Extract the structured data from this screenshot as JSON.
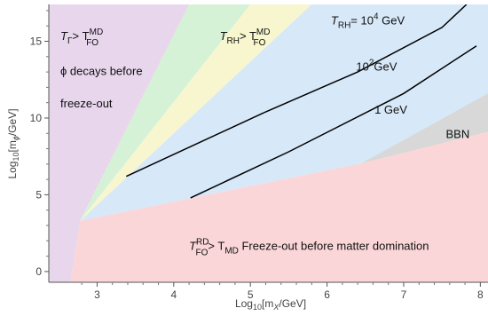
{
  "chart_data": {
    "type": "area",
    "xlabel_main": "Log",
    "xlabel_sub": "10",
    "xlabel_rest": "[m",
    "xlabel_var_sub": "X",
    "xlabel_tail": "/GeV]",
    "ylabel_main": "Log",
    "ylabel_sub": "10",
    "ylabel_rest": "[m",
    "ylabel_var_sub": "ϕ",
    "ylabel_tail": "/GeV]",
    "xlim": [
      2.37,
      8.1
    ],
    "ylim": [
      -0.7,
      17.4
    ],
    "x_ticks": [
      3,
      4,
      5,
      6,
      7,
      8
    ],
    "x_tick_labels": [
      "3",
      "4",
      "5",
      "6",
      "7",
      "8"
    ],
    "y_ticks": [
      0,
      5,
      10,
      15
    ],
    "y_tick_labels": [
      "0",
      "5",
      "10",
      "15"
    ],
    "grid": false,
    "colors": {
      "purple": "#e7d6ec",
      "green": "#d6f2d6",
      "yellow": "#f7f6cf",
      "blue": "#d7e8f8",
      "pink": "#fbd6d8",
      "gray": "#d8d8d8",
      "curve": "#000000"
    },
    "regions": [
      {
        "id": "purple",
        "points": [
          [
            2.37,
            17.4
          ],
          [
            4.2,
            17.4
          ],
          [
            2.78,
            3.3
          ],
          [
            2.65,
            -0.7
          ],
          [
            2.37,
            -0.7
          ]
        ]
      },
      {
        "id": "green",
        "points": [
          [
            4.2,
            17.4
          ],
          [
            5.0,
            17.4
          ],
          [
            2.78,
            3.3
          ]
        ]
      },
      {
        "id": "yellow",
        "points": [
          [
            5.0,
            17.4
          ],
          [
            5.8,
            17.4
          ],
          [
            2.78,
            3.3
          ]
        ]
      },
      {
        "id": "blue",
        "points": [
          [
            5.8,
            17.4
          ],
          [
            8.1,
            17.4
          ],
          [
            8.1,
            9.1
          ],
          [
            6.45,
            7.05
          ],
          [
            2.78,
            3.3
          ]
        ]
      },
      {
        "id": "gray",
        "points": [
          [
            6.45,
            7.05
          ],
          [
            8.1,
            11.6
          ],
          [
            8.1,
            9.1
          ]
        ]
      },
      {
        "id": "pink",
        "points": [
          [
            2.65,
            -0.7
          ],
          [
            2.78,
            3.3
          ],
          [
            6.45,
            7.05
          ],
          [
            8.1,
            9.1
          ],
          [
            8.1,
            -0.7
          ]
        ]
      }
    ],
    "series": [
      {
        "x": [
          3.38,
          5.2,
          6.4,
          7.5,
          7.82
        ],
        "y": [
          6.2,
          10.4,
          13.0,
          15.9,
          17.4
        ]
      },
      {
        "x": [
          4.22,
          5.5,
          7.0,
          7.95
        ],
        "y": [
          4.8,
          7.8,
          11.6,
          14.7
        ]
      }
    ],
    "annotations": {
      "t_gamma": {
        "main": "T",
        "sub": "Γ",
        "rel": "> T",
        "sup": "MD",
        "sub2": "FO",
        "x": 2.52,
        "y": 15.1
      },
      "phi_decays": {
        "text": "ϕ decays before",
        "x": 2.52,
        "y": 12.8
      },
      "freeze_out": {
        "text": "freeze-out",
        "x": 2.52,
        "y": 10.7
      },
      "t_rh_fo": {
        "main": "T",
        "sub": "RH",
        "rel": "> T",
        "sup": "MD",
        "sub2": "FO",
        "x": 4.6,
        "y": 15.1
      },
      "t_rh_value": {
        "main": "T",
        "sub": "RH",
        "rel": "= 10",
        "sup": "4",
        "unit": " GeV",
        "x": 6.05,
        "y": 16.1
      },
      "label_1e2": {
        "main": "10",
        "sup": "2",
        "unit": "GeV",
        "x": 6.38,
        "y": 13.1
      },
      "label_1": {
        "text": "1 GeV",
        "x": 6.62,
        "y": 10.3
      },
      "bbn": {
        "text": "BBN",
        "x": 7.55,
        "y": 8.7
      },
      "t_fo_rd": {
        "main": "T",
        "sup": "RD",
        "sub2": "FO",
        "rel": "> T",
        "sub": "MD",
        "tail": "  Freeze-out before matter domination",
        "x": 4.2,
        "y": 1.4
      }
    }
  }
}
